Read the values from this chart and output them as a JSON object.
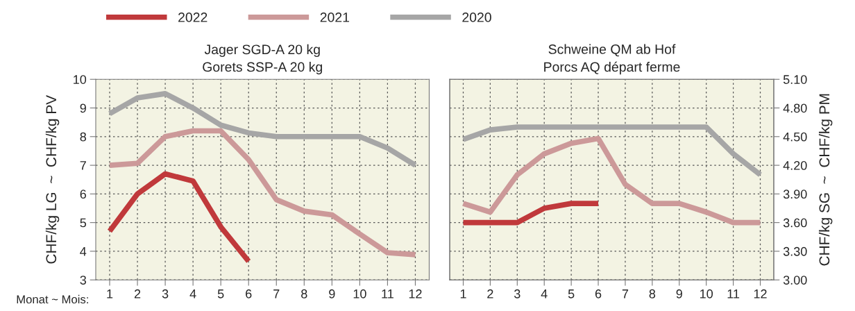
{
  "chart_data": [
    {
      "type": "line",
      "title": "Jager SGD-A 20 kg\nGorets SSP-A 20 kg",
      "xlabel": "Monat ~ Mois:",
      "ylabel": "CHF/kg LG  ~  CHF/kg PV",
      "x": [
        1,
        2,
        3,
        4,
        5,
        6,
        7,
        8,
        9,
        10,
        11,
        12
      ],
      "xlim": [
        0.5,
        12.5
      ],
      "xticks": [
        1,
        2,
        3,
        4,
        5,
        6,
        7,
        8,
        9,
        10,
        11,
        12
      ],
      "ylim": [
        3,
        10
      ],
      "yticks": [
        3,
        4,
        5,
        6,
        7,
        8,
        9,
        10
      ],
      "grid": true,
      "legend": "top",
      "marker": "none",
      "line_style": "solid",
      "series": [
        {
          "name": "2022",
          "color": "#c0393b",
          "values": [
            4.7,
            6.0,
            6.7,
            6.45,
            4.85,
            3.65,
            null,
            null,
            null,
            null,
            null,
            null
          ]
        },
        {
          "name": "2021",
          "color": "#cc9999",
          "values": [
            7.0,
            7.07,
            8.0,
            8.2,
            8.2,
            7.2,
            5.8,
            5.4,
            5.27,
            4.6,
            3.95,
            3.88
          ]
        },
        {
          "name": "2020",
          "color": "#a6a6a6",
          "values": [
            8.8,
            9.35,
            9.5,
            9.0,
            8.4,
            8.13,
            8.0,
            8.0,
            8.0,
            8.0,
            7.6,
            7.0
          ]
        }
      ]
    },
    {
      "type": "line",
      "title": "Schweine QM ab Hof\nPorcs AQ départ ferme",
      "y2label": "CHF/kg SG  ~  CHF/kg PM",
      "x": [
        1,
        2,
        3,
        4,
        5,
        6,
        7,
        8,
        9,
        10,
        11,
        12
      ],
      "xlim": [
        0.5,
        12.5
      ],
      "xticks": [
        1,
        2,
        3,
        4,
        5,
        6,
        7,
        8,
        9,
        10,
        11,
        12
      ],
      "y2lim": [
        3.0,
        5.1
      ],
      "y2ticks": [
        {
          "value": 3.0,
          "label": "3.00"
        },
        {
          "value": 3.3,
          "label": "3.30"
        },
        {
          "value": 3.6,
          "label": "3.60"
        },
        {
          "value": 3.9,
          "label": "3.90"
        },
        {
          "value": 4.2,
          "label": "4.20"
        },
        {
          "value": 4.5,
          "label": "4.50"
        },
        {
          "value": 4.8,
          "label": "4.80"
        },
        {
          "value": 5.1,
          "label": "5.10"
        }
      ],
      "grid": true,
      "marker": "none",
      "line_style": "solid",
      "series": [
        {
          "color": "#c0393b",
          "axis": "y2",
          "values": [
            3.6,
            3.6,
            3.6,
            3.75,
            3.8,
            3.8,
            null,
            null,
            null,
            null,
            null,
            null
          ]
        },
        {
          "color": "#cc9999",
          "axis": "y2",
          "values": [
            3.8,
            3.71,
            4.1,
            4.32,
            4.43,
            4.48,
            4.0,
            3.8,
            3.8,
            3.71,
            3.6,
            3.6
          ]
        },
        {
          "color": "#a6a6a6",
          "axis": "y2",
          "values": [
            4.47,
            4.57,
            4.6,
            4.6,
            4.6,
            4.6,
            4.6,
            4.6,
            4.6,
            4.6,
            4.32,
            4.1
          ]
        }
      ]
    }
  ]
}
